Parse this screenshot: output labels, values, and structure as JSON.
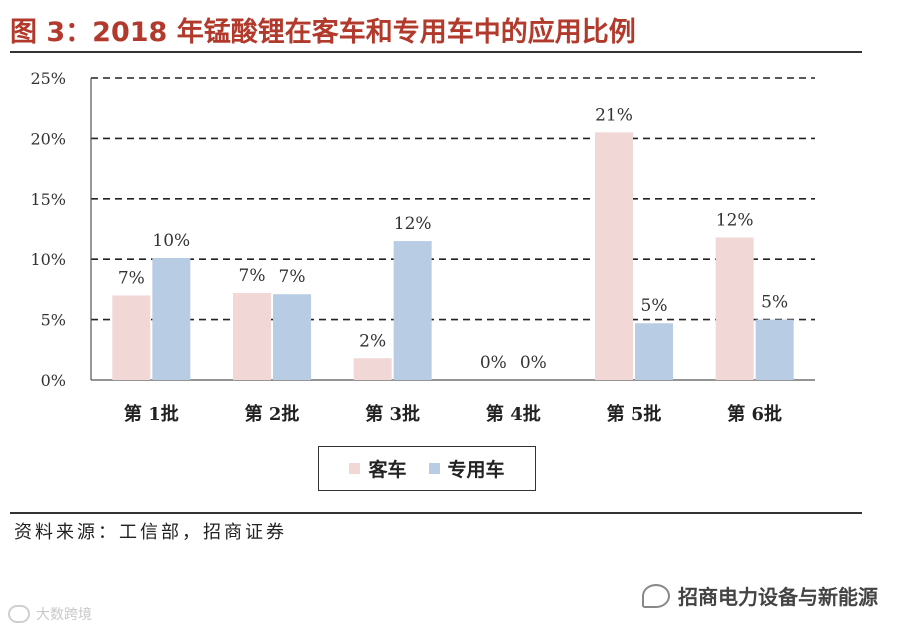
{
  "header": {
    "title": "图 3：2018 年锰酸锂在客车和专用车中的应用比例"
  },
  "footer": {
    "source": "资料来源：工信部，招商证券"
  },
  "watermark": {
    "text": "招商电力设备与新能源",
    "corner_text": "大数跨境"
  },
  "colors": {
    "series_1": "#f2d7d7",
    "series_2": "#b8cce4",
    "title": "#b23a2c"
  },
  "chart_data": {
    "type": "bar",
    "title": "2018 年锰酸锂在客车和专用车中的应用比例",
    "categories": [
      "第 1批",
      "第 2批",
      "第 3批",
      "第 4批",
      "第 5批",
      "第 6批"
    ],
    "series": [
      {
        "name": "客车",
        "values": [
          7,
          7.2,
          1.8,
          0,
          20.5,
          11.8
        ],
        "labels": [
          "7%",
          "7%",
          "2%",
          "0%",
          "21%",
          "12%"
        ]
      },
      {
        "name": "专用车",
        "values": [
          10.1,
          7.1,
          11.5,
          0,
          4.7,
          5
        ],
        "labels": [
          "10%",
          "7%",
          "12%",
          "0%",
          "5%",
          "5%"
        ]
      }
    ],
    "ylim": [
      0,
      25
    ],
    "yticks": [
      0,
      5,
      10,
      15,
      20,
      25
    ],
    "ytick_labels": [
      "0%",
      "5%",
      "10%",
      "15%",
      "20%",
      "25%"
    ],
    "xlabel": "",
    "ylabel": "",
    "grid": "dashed horizontal",
    "legend": "bottom-center"
  }
}
